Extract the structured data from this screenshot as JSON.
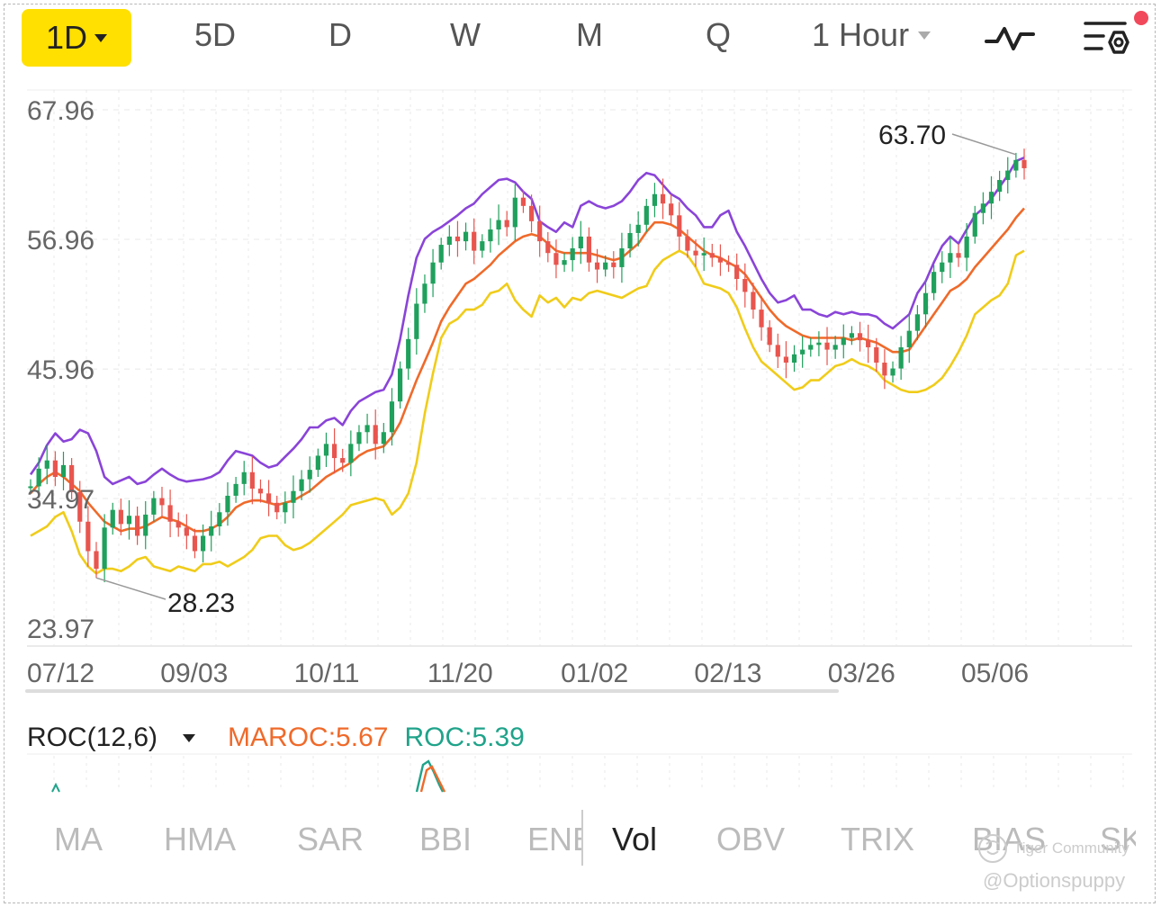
{
  "toolbar": {
    "active_period": "1D",
    "periods": [
      "5D",
      "D",
      "W",
      "M",
      "Q"
    ],
    "interval": "1 Hour"
  },
  "chart_data": {
    "type": "line",
    "chart_kind": "candlestick",
    "ylim": [
      23.97,
      67.96
    ],
    "y_ticks": [
      "67.96",
      "56.96",
      "45.96",
      "34.97",
      "23.97"
    ],
    "x_ticks": [
      "07/12",
      "09/03",
      "10/11",
      "11/20",
      "01/02",
      "02/13",
      "03/26",
      "05/06"
    ],
    "annotations": [
      {
        "label": "63.70",
        "value": 63.7,
        "type": "high"
      },
      {
        "label": "28.23",
        "value": 28.23,
        "type": "low"
      }
    ],
    "grid": true,
    "colors": {
      "up": "#1fa05c",
      "down": "#e8554e",
      "upper_band": "#8a44d8",
      "middle": "#ef6a2a",
      "lower_band": "#f0cc1a"
    },
    "price_series": [
      36.0,
      37.5,
      38.2,
      36.8,
      37.8,
      35.5,
      33.0,
      30.5,
      29.0,
      32.5,
      34.0,
      32.8,
      33.5,
      31.8,
      33.6,
      35.0,
      34.4,
      33.0,
      32.5,
      31.8,
      30.5,
      31.8,
      32.6,
      33.8,
      35.2,
      36.2,
      37.2,
      35.8,
      35.4,
      34.6,
      33.8,
      34.6,
      35.6,
      36.6,
      37.4,
      38.6,
      39.6,
      38.4,
      38.0,
      39.6,
      40.6,
      41.2,
      39.6,
      40.6,
      43.2,
      46.0,
      48.5,
      51.5,
      53.2,
      55.0,
      56.5,
      57.2,
      56.8,
      57.6,
      56.0,
      56.8,
      57.8,
      58.6,
      58.0,
      60.5,
      59.8,
      58.5,
      56.8,
      55.8,
      54.8,
      55.2,
      56.2,
      57.2,
      55.0,
      54.4,
      55.0,
      54.6,
      56.2,
      57.5,
      58.2,
      59.8,
      60.8,
      60.0,
      59.0,
      57.2,
      56.0,
      55.6,
      55.8,
      55.4,
      55.0,
      54.8,
      53.6,
      52.5,
      51.0,
      49.5,
      48.0,
      47.0,
      46.5,
      47.2,
      47.6,
      48.0,
      48.2,
      47.6,
      48.0,
      48.6,
      49.0,
      48.4,
      47.8,
      46.5,
      45.4,
      46.0,
      47.8,
      49.2,
      50.6,
      52.4,
      54.2,
      55.0,
      55.8,
      55.4,
      57.2,
      59.2,
      60.0,
      61.0,
      62.0,
      62.8,
      63.7,
      63.0
    ],
    "series": [
      {
        "values": [
          37.0,
          38.0,
          39.5,
          40.5,
          39.8,
          40.0,
          40.8,
          40.5,
          39.0,
          36.8,
          36.2,
          36.5,
          36.8,
          36.2,
          36.4,
          37.0,
          37.5,
          37.0,
          36.6,
          36.4,
          36.5,
          36.6,
          36.8,
          37.2,
          38.2,
          39.0,
          38.8,
          38.6,
          38.0,
          37.6,
          37.8,
          38.5,
          39.2,
          40.0,
          41.0,
          41.0,
          41.6,
          41.8,
          41.2,
          42.4,
          43.2,
          43.6,
          44.0,
          44.2,
          45.5,
          48.5,
          52.2,
          55.4,
          57.0,
          57.6,
          58.0,
          58.5,
          59.0,
          59.6,
          60.0,
          60.8,
          61.4,
          62.0,
          62.1,
          61.8,
          61.0,
          60.4,
          58.5,
          58.0,
          57.6,
          58.4,
          58.0,
          59.8,
          60.2,
          59.8,
          59.6,
          59.8,
          60.2,
          61.0,
          62.0,
          62.6,
          62.4,
          61.6,
          60.8,
          60.4,
          59.6,
          59.0,
          58.0,
          58.0,
          59.0,
          59.4,
          57.6,
          56.4,
          55.0,
          53.6,
          52.4,
          51.6,
          51.8,
          52.2,
          51.0,
          51.0,
          50.6,
          50.4,
          50.8,
          50.6,
          50.8,
          50.6,
          50.6,
          50.4,
          49.8,
          49.4,
          50.0,
          50.6,
          52.4,
          53.4,
          55.0,
          56.4,
          57.2,
          56.6,
          57.8,
          59.0,
          59.6,
          60.4,
          61.4,
          62.4,
          63.6,
          63.9
        ]
      },
      {
        "values": [
          35.4,
          36.2,
          36.8,
          37.2,
          36.8,
          36.2,
          35.6,
          34.6,
          33.8,
          33.0,
          32.6,
          32.2,
          32.4,
          32.4,
          32.6,
          33.0,
          33.4,
          33.2,
          33.0,
          32.6,
          32.2,
          32.2,
          32.4,
          32.8,
          33.4,
          34.2,
          34.6,
          34.8,
          34.8,
          34.6,
          34.4,
          34.6,
          34.8,
          35.2,
          35.6,
          36.2,
          36.8,
          37.2,
          37.6,
          38.0,
          38.6,
          39.0,
          39.2,
          39.4,
          40.2,
          41.4,
          43.2,
          45.0,
          46.6,
          48.2,
          50.0,
          51.2,
          52.2,
          53.2,
          53.6,
          54.2,
          54.8,
          55.6,
          56.2,
          56.8,
          57.2,
          57.4,
          57.2,
          56.6,
          56.0,
          55.8,
          55.8,
          55.8,
          55.8,
          55.6,
          55.4,
          55.2,
          55.4,
          56.0,
          56.6,
          57.6,
          58.4,
          58.4,
          58.2,
          57.8,
          57.2,
          56.6,
          56.0,
          55.6,
          55.4,
          55.0,
          54.6,
          54.0,
          53.0,
          52.0,
          51.0,
          50.2,
          49.6,
          49.2,
          48.8,
          48.6,
          48.6,
          48.6,
          48.6,
          48.6,
          48.4,
          48.6,
          48.4,
          48.2,
          47.8,
          47.4,
          47.4,
          47.6,
          48.6,
          49.6,
          50.6,
          51.6,
          52.6,
          53.0,
          53.6,
          54.6,
          55.4,
          56.2,
          57.0,
          57.8,
          58.8,
          59.6
        ]
      },
      {
        "values": [
          31.8,
          32.2,
          32.6,
          33.4,
          33.8,
          32.2,
          30.2,
          29.2,
          28.6,
          29.0,
          29.0,
          28.8,
          29.2,
          29.8,
          30.0,
          29.2,
          29.0,
          28.8,
          29.2,
          29.0,
          28.8,
          29.4,
          29.4,
          29.6,
          29.2,
          29.6,
          30.0,
          30.6,
          31.6,
          31.8,
          31.8,
          31.0,
          30.6,
          30.8,
          31.2,
          31.8,
          32.4,
          33.0,
          33.6,
          34.4,
          34.6,
          34.8,
          35.0,
          34.8,
          33.6,
          34.2,
          35.4,
          38.0,
          42.2,
          45.6,
          48.6,
          49.8,
          50.2,
          51.0,
          51.0,
          51.4,
          52.4,
          52.6,
          53.2,
          51.8,
          51.0,
          50.4,
          52.2,
          51.6,
          52.0,
          51.2,
          52.0,
          51.8,
          52.4,
          52.6,
          52.4,
          52.2,
          52.0,
          52.4,
          52.8,
          53.0,
          54.4,
          55.2,
          55.6,
          56.0,
          55.6,
          54.6,
          53.2,
          53.0,
          52.8,
          52.4,
          51.2,
          49.4,
          47.8,
          46.6,
          46.0,
          45.4,
          44.8,
          44.2,
          44.4,
          45.0,
          45.0,
          45.6,
          46.2,
          46.4,
          46.8,
          46.4,
          46.2,
          45.8,
          45.0,
          44.6,
          44.2,
          44.0,
          44.0,
          44.2,
          44.6,
          45.2,
          46.2,
          47.4,
          48.8,
          50.6,
          51.2,
          51.8,
          52.2,
          53.2,
          55.6,
          56.0
        ]
      }
    ]
  },
  "indicator": {
    "name": "ROC(12,6)",
    "maroc_label": "MAROC:5.67",
    "roc_label": "ROC:5.39",
    "maroc_color": "#ef6a2a",
    "roc_color": "#20a38a"
  },
  "tabs": {
    "items": [
      "MA",
      "HMA",
      "SAR",
      "BBI",
      "ENE",
      "Vol",
      "OBV",
      "TRIX",
      "BIAS",
      "SK"
    ],
    "active": "Vol"
  },
  "watermark": {
    "community": "Tiger Community",
    "handle": "@Optionspuppy"
  }
}
